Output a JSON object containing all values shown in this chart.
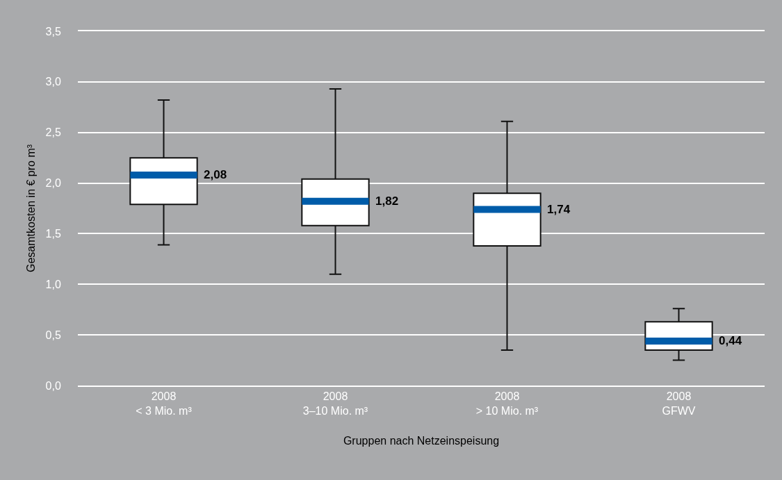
{
  "chart_data": {
    "type": "box",
    "xlabel": "Gruppen nach Netzeinspeisung",
    "ylabel": "Gesamtkosten in € pro m³",
    "categories": [
      "2008\n< 3 Mio. m³",
      "2008\n3–10 Mio. m³",
      "2008\n> 10 Mio. m³",
      "2008\nGFWV"
    ],
    "series": [
      {
        "color": "#ffffff",
        "value_labels": [
          "2,08",
          "1,82",
          "1,74",
          "0,44"
        ],
        "boxes": [
          {
            "low": 1.39,
            "q1": 1.79,
            "median": 2.08,
            "q3": 2.25,
            "high": 2.82
          },
          {
            "low": 1.1,
            "q1": 1.58,
            "median": 1.82,
            "q3": 2.04,
            "high": 2.93
          },
          {
            "low": 0.35,
            "q1": 1.38,
            "median": 1.74,
            "q3": 1.9,
            "high": 2.61
          },
          {
            "low": 0.25,
            "q1": 0.35,
            "median": 0.44,
            "q3": 0.63,
            "high": 0.76
          }
        ]
      }
    ],
    "ylim": [
      0,
      3.5
    ],
    "yticks": [
      {
        "value": 0,
        "label": "0,0"
      },
      {
        "value": 0.5,
        "label": "0,5"
      },
      {
        "value": 1,
        "label": "1,0"
      },
      {
        "value": 1.5,
        "label": "1,5"
      },
      {
        "value": 2,
        "label": "2,0"
      },
      {
        "value": 2.5,
        "label": "2,5"
      },
      {
        "value": 3,
        "label": "3,0"
      },
      {
        "value": 3.5,
        "label": "3,5"
      }
    ],
    "grid": "y"
  }
}
